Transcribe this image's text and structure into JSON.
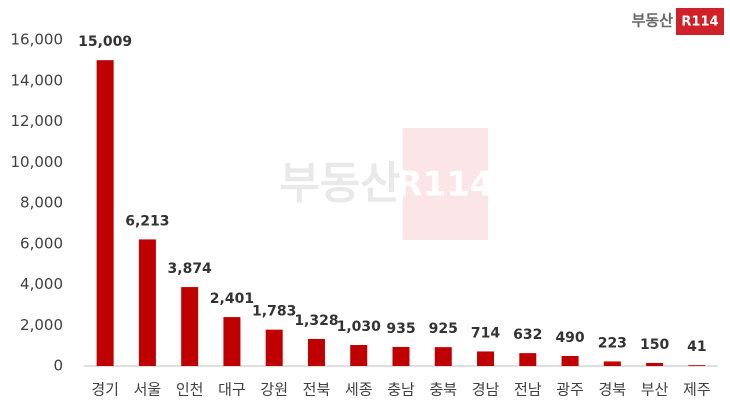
{
  "chart_data": {
    "type": "bar",
    "logo": "부동산",
    "logo_badge": "R114",
    "categories": [
      "경기",
      "서울",
      "인천",
      "대구",
      "강원",
      "전북",
      "세종",
      "충남",
      "충북",
      "경남",
      "전남",
      "광주",
      "경북",
      "부산",
      "제주"
    ],
    "values": [
      15009,
      6213,
      3874,
      2401,
      1783,
      1328,
      1030,
      935,
      925,
      714,
      632,
      490,
      223,
      150,
      41
    ],
    "value_labels": [
      "15,009",
      "6,213",
      "3,874",
      "2,401",
      "1,783",
      "1,328",
      "1,030",
      "935",
      "925",
      "714",
      "632",
      "490",
      "223",
      "150",
      "41"
    ],
    "color": "#c00000",
    "ylim": [
      0,
      16000
    ],
    "yticks": [
      0,
      {
        "value": 2000,
        "label": "2,000"
      },
      {
        "value": 4000,
        "label": "4,000"
      },
      {
        "value": 6000,
        "label": "6,000"
      },
      {
        "value": 8000,
        "label": "8,000"
      },
      {
        "value": 10000,
        "label": "10,000"
      },
      {
        "value": 12000,
        "label": "12,000"
      },
      {
        "value": 14000,
        "label": "14,000"
      },
      {
        "value": 16000,
        "label": "16,000"
      }
    ],
    "grid": false
  }
}
